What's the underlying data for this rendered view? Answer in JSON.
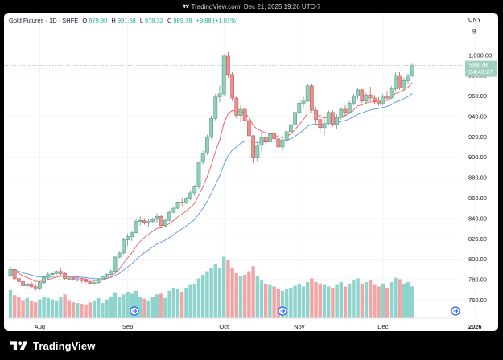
{
  "header": {
    "text": "TradingView.com, Dec 21, 2025 19:26 UTC-7"
  },
  "legend": {
    "symbol": "Gold Futures · 1D · SHFE",
    "o_label": "O",
    "o_value": "979.90",
    "h_label": "H",
    "h_value": "991.58",
    "l_label": "L",
    "l_value": "978.32",
    "c_label": "C",
    "c_value": "989.78",
    "change": "+9.88 (+1.01%)"
  },
  "price_scale": {
    "currency": "CNY",
    "unit_mark": "g",
    "last_price": "989.78",
    "countdown": "04:48:27"
  },
  "footer": {
    "brand": "TradingView"
  },
  "colors": {
    "up": "#8fcfb9",
    "down": "#ec8f8f",
    "up_border": "#5b9c82",
    "down_border": "#c85e5e",
    "vol_up": "#8fd3cd",
    "vol_down": "#f2a5a5",
    "ma_fast": "#f25a5a",
    "ma_slow": "#5b8ff0",
    "grid": "#f0f2f5",
    "axis_text": "#131722",
    "last_bg": "#a2d1c1"
  },
  "chart_data": {
    "type": "candlestick",
    "title": "Gold Futures · 1D · SHFE",
    "currency": "CNY",
    "ylim": [
      750,
      1010
    ],
    "y_ticks": [
      "1,000.00",
      "980.00",
      "960.00",
      "940.00",
      "920.00",
      "900.00",
      "880.00",
      "860.00",
      "840.00",
      "820.00",
      "800.00",
      "780.00",
      "760.00"
    ],
    "y_tick_values": [
      1000,
      980,
      960,
      940,
      920,
      900,
      880,
      860,
      840,
      820,
      800,
      780,
      760
    ],
    "x_labels": [
      "Aug",
      "Sep",
      "Oct",
      "Nov",
      "Dec",
      "2026"
    ],
    "x_label_index": [
      7,
      28,
      51,
      69,
      89,
      111
    ],
    "candles": [
      [
        784.0,
        793.0,
        782.0,
        790.0
      ],
      [
        790.0,
        790.0,
        779.0,
        781.0
      ],
      [
        781.0,
        785.0,
        775.0,
        778.0
      ],
      [
        778.0,
        779.0,
        772.0,
        774.0
      ],
      [
        774.0,
        777.0,
        770.0,
        775.0
      ],
      [
        775.0,
        778.0,
        771.0,
        773.0
      ],
      [
        773.0,
        776.0,
        769.0,
        771.0
      ],
      [
        771.0,
        778.0,
        770.0,
        777.0
      ],
      [
        777.0,
        783.0,
        776.0,
        782.0
      ],
      [
        782.0,
        787.0,
        780.0,
        785.0
      ],
      [
        785.0,
        788.0,
        783.0,
        786.0
      ],
      [
        786.0,
        789.0,
        785.0,
        788.0
      ],
      [
        788.0,
        791.0,
        784.0,
        786.0
      ],
      [
        786.0,
        787.0,
        780.0,
        781.0
      ],
      [
        781.0,
        783.0,
        779.0,
        781.0
      ],
      [
        781.0,
        782.0,
        779.0,
        780.0
      ],
      [
        780.0,
        782.0,
        778.0,
        780.0
      ],
      [
        780.0,
        781.0,
        777.0,
        779.0
      ],
      [
        779.0,
        781.0,
        777.0,
        778.0
      ],
      [
        778.0,
        779.0,
        775.0,
        776.0
      ],
      [
        776.0,
        779.0,
        775.0,
        777.0
      ],
      [
        777.0,
        781.0,
        776.0,
        780.0
      ],
      [
        780.0,
        784.0,
        779.0,
        783.0
      ],
      [
        783.0,
        786.0,
        782.0,
        785.0
      ],
      [
        785.0,
        790.0,
        784.0,
        788.0
      ],
      [
        788.0,
        803.0,
        787.0,
        802.0
      ],
      [
        802.0,
        808.0,
        801.0,
        806.0
      ],
      [
        806.0,
        821.0,
        805.0,
        819.0
      ],
      [
        819.0,
        825.0,
        813.0,
        822.0
      ],
      [
        822.0,
        828.0,
        818.0,
        826.0
      ],
      [
        826.0,
        839.0,
        825.0,
        837.0
      ],
      [
        837.0,
        842.0,
        833.0,
        838.0
      ],
      [
        838.0,
        840.0,
        834.0,
        836.0
      ],
      [
        836.0,
        839.0,
        832.0,
        837.0
      ],
      [
        837.0,
        841.0,
        835.0,
        839.0
      ],
      [
        839.0,
        845.0,
        836.0,
        842.0
      ],
      [
        842.0,
        843.0,
        832.0,
        833.0
      ],
      [
        833.0,
        840.0,
        832.0,
        838.0
      ],
      [
        838.0,
        848.0,
        837.0,
        846.0
      ],
      [
        846.0,
        852.0,
        845.0,
        850.0
      ],
      [
        850.0,
        857.0,
        849.0,
        856.0
      ],
      [
        856.0,
        860.0,
        852.0,
        855.0
      ],
      [
        855.0,
        861.0,
        854.0,
        859.0
      ],
      [
        859.0,
        867.0,
        858.0,
        865.0
      ],
      [
        865.0,
        873.0,
        862.0,
        871.0
      ],
      [
        871.0,
        896.0,
        869.0,
        895.0
      ],
      [
        895.0,
        906.0,
        893.0,
        904.0
      ],
      [
        904.0,
        922.0,
        902.0,
        920.0
      ],
      [
        920.0,
        941.0,
        918.0,
        938.0
      ],
      [
        938.0,
        962.0,
        936.0,
        959.0
      ],
      [
        959.0,
        970.0,
        954.0,
        962.0
      ],
      [
        962.0,
        1001.0,
        960.0,
        999.0
      ],
      [
        999.0,
        1003.0,
        978.0,
        981.0
      ],
      [
        981.0,
        984.0,
        955.0,
        958.0
      ],
      [
        958.0,
        960.0,
        938.0,
        941.0
      ],
      [
        941.0,
        951.0,
        934.0,
        947.0
      ],
      [
        947.0,
        949.0,
        931.0,
        936.0
      ],
      [
        936.0,
        940.0,
        918.0,
        921.0
      ],
      [
        921.0,
        922.0,
        894.0,
        900.0
      ],
      [
        900.0,
        915.0,
        896.0,
        912.0
      ],
      [
        912.0,
        925.0,
        905.0,
        919.0
      ],
      [
        919.0,
        927.0,
        911.0,
        915.0
      ],
      [
        915.0,
        926.0,
        912.0,
        923.0
      ],
      [
        923.0,
        929.0,
        916.0,
        918.0
      ],
      [
        918.0,
        922.0,
        907.0,
        910.0
      ],
      [
        910.0,
        921.0,
        906.0,
        917.0
      ],
      [
        917.0,
        928.0,
        913.0,
        925.0
      ],
      [
        925.0,
        935.0,
        921.0,
        932.0
      ],
      [
        932.0,
        946.0,
        930.0,
        944.0
      ],
      [
        944.0,
        956.0,
        942.0,
        953.0
      ],
      [
        953.0,
        960.0,
        948.0,
        955.0
      ],
      [
        955.0,
        972.0,
        954.0,
        970.0
      ],
      [
        970.0,
        972.0,
        945.0,
        946.0
      ],
      [
        946.0,
        949.0,
        933.0,
        937.0
      ],
      [
        937.0,
        943.0,
        924.0,
        929.0
      ],
      [
        929.0,
        938.0,
        921.0,
        933.0
      ],
      [
        933.0,
        946.0,
        931.0,
        944.0
      ],
      [
        944.0,
        946.0,
        930.0,
        932.0
      ],
      [
        932.0,
        942.0,
        928.0,
        939.0
      ],
      [
        939.0,
        949.0,
        937.0,
        947.0
      ],
      [
        947.0,
        951.0,
        940.0,
        944.0
      ],
      [
        944.0,
        955.0,
        942.0,
        953.0
      ],
      [
        953.0,
        962.0,
        951.0,
        960.0
      ],
      [
        960.0,
        968.0,
        957.0,
        966.0
      ],
      [
        966.0,
        967.0,
        953.0,
        955.0
      ],
      [
        955.0,
        963.0,
        952.0,
        961.0
      ],
      [
        961.0,
        969.0,
        955.0,
        958.0
      ],
      [
        958.0,
        961.0,
        952.0,
        955.0
      ],
      [
        955.0,
        959.0,
        950.0,
        953.0
      ],
      [
        953.0,
        962.0,
        951.0,
        960.0
      ],
      [
        960.0,
        965.0,
        955.0,
        958.0
      ],
      [
        958.0,
        970.0,
        957.0,
        967.0
      ],
      [
        967.0,
        983.0,
        965.0,
        980.0
      ],
      [
        980.0,
        984.0,
        966.0,
        968.0
      ],
      [
        968.0,
        978.0,
        965.0,
        975.0
      ],
      [
        975.0,
        982.0,
        972.0,
        979.9
      ],
      [
        979.9,
        991.58,
        978.32,
        989.78
      ]
    ],
    "volume": [
      [
        39,
        "up"
      ],
      [
        32,
        "down"
      ],
      [
        30,
        "down"
      ],
      [
        25,
        "down"
      ],
      [
        28,
        "up"
      ],
      [
        24,
        "down"
      ],
      [
        22,
        "down"
      ],
      [
        26,
        "up"
      ],
      [
        30,
        "up"
      ],
      [
        28,
        "up"
      ],
      [
        26,
        "up"
      ],
      [
        24,
        "up"
      ],
      [
        29,
        "up"
      ],
      [
        33,
        "down"
      ],
      [
        25,
        "down"
      ],
      [
        22,
        "down"
      ],
      [
        21,
        "up"
      ],
      [
        20,
        "down"
      ],
      [
        19,
        "down"
      ],
      [
        22,
        "down"
      ],
      [
        24,
        "up"
      ],
      [
        28,
        "up"
      ],
      [
        21,
        "up"
      ],
      [
        26,
        "up"
      ],
      [
        30,
        "up"
      ],
      [
        35,
        "up"
      ],
      [
        30,
        "up"
      ],
      [
        33,
        "up"
      ],
      [
        36,
        "up"
      ],
      [
        34,
        "up"
      ],
      [
        38,
        "up"
      ],
      [
        29,
        "up"
      ],
      [
        27,
        "down"
      ],
      [
        24,
        "up"
      ],
      [
        30,
        "up"
      ],
      [
        33,
        "up"
      ],
      [
        34,
        "down"
      ],
      [
        28,
        "up"
      ],
      [
        38,
        "up"
      ],
      [
        42,
        "up"
      ],
      [
        40,
        "up"
      ],
      [
        36,
        "down"
      ],
      [
        42,
        "up"
      ],
      [
        46,
        "up"
      ],
      [
        48,
        "up"
      ],
      [
        55,
        "up"
      ],
      [
        60,
        "up"
      ],
      [
        65,
        "up"
      ],
      [
        70,
        "up"
      ],
      [
        75,
        "up"
      ],
      [
        70,
        "up"
      ],
      [
        85,
        "up"
      ],
      [
        80,
        "down"
      ],
      [
        70,
        "down"
      ],
      [
        62,
        "down"
      ],
      [
        58,
        "up"
      ],
      [
        60,
        "down"
      ],
      [
        65,
        "down"
      ],
      [
        72,
        "down"
      ],
      [
        58,
        "up"
      ],
      [
        52,
        "up"
      ],
      [
        48,
        "down"
      ],
      [
        46,
        "up"
      ],
      [
        44,
        "down"
      ],
      [
        40,
        "down"
      ],
      [
        38,
        "up"
      ],
      [
        40,
        "up"
      ],
      [
        42,
        "up"
      ],
      [
        45,
        "up"
      ],
      [
        48,
        "up"
      ],
      [
        44,
        "up"
      ],
      [
        50,
        "up"
      ],
      [
        55,
        "down"
      ],
      [
        50,
        "down"
      ],
      [
        48,
        "down"
      ],
      [
        46,
        "up"
      ],
      [
        44,
        "up"
      ],
      [
        42,
        "down"
      ],
      [
        46,
        "up"
      ],
      [
        50,
        "up"
      ],
      [
        44,
        "down"
      ],
      [
        48,
        "up"
      ],
      [
        52,
        "up"
      ],
      [
        55,
        "up"
      ],
      [
        48,
        "down"
      ],
      [
        50,
        "up"
      ],
      [
        52,
        "down"
      ],
      [
        46,
        "down"
      ],
      [
        44,
        "down"
      ],
      [
        48,
        "up"
      ],
      [
        42,
        "down"
      ],
      [
        50,
        "up"
      ],
      [
        56,
        "up"
      ],
      [
        54,
        "down"
      ],
      [
        48,
        "up"
      ],
      [
        50,
        "up"
      ],
      [
        44,
        "up"
      ]
    ]
  }
}
